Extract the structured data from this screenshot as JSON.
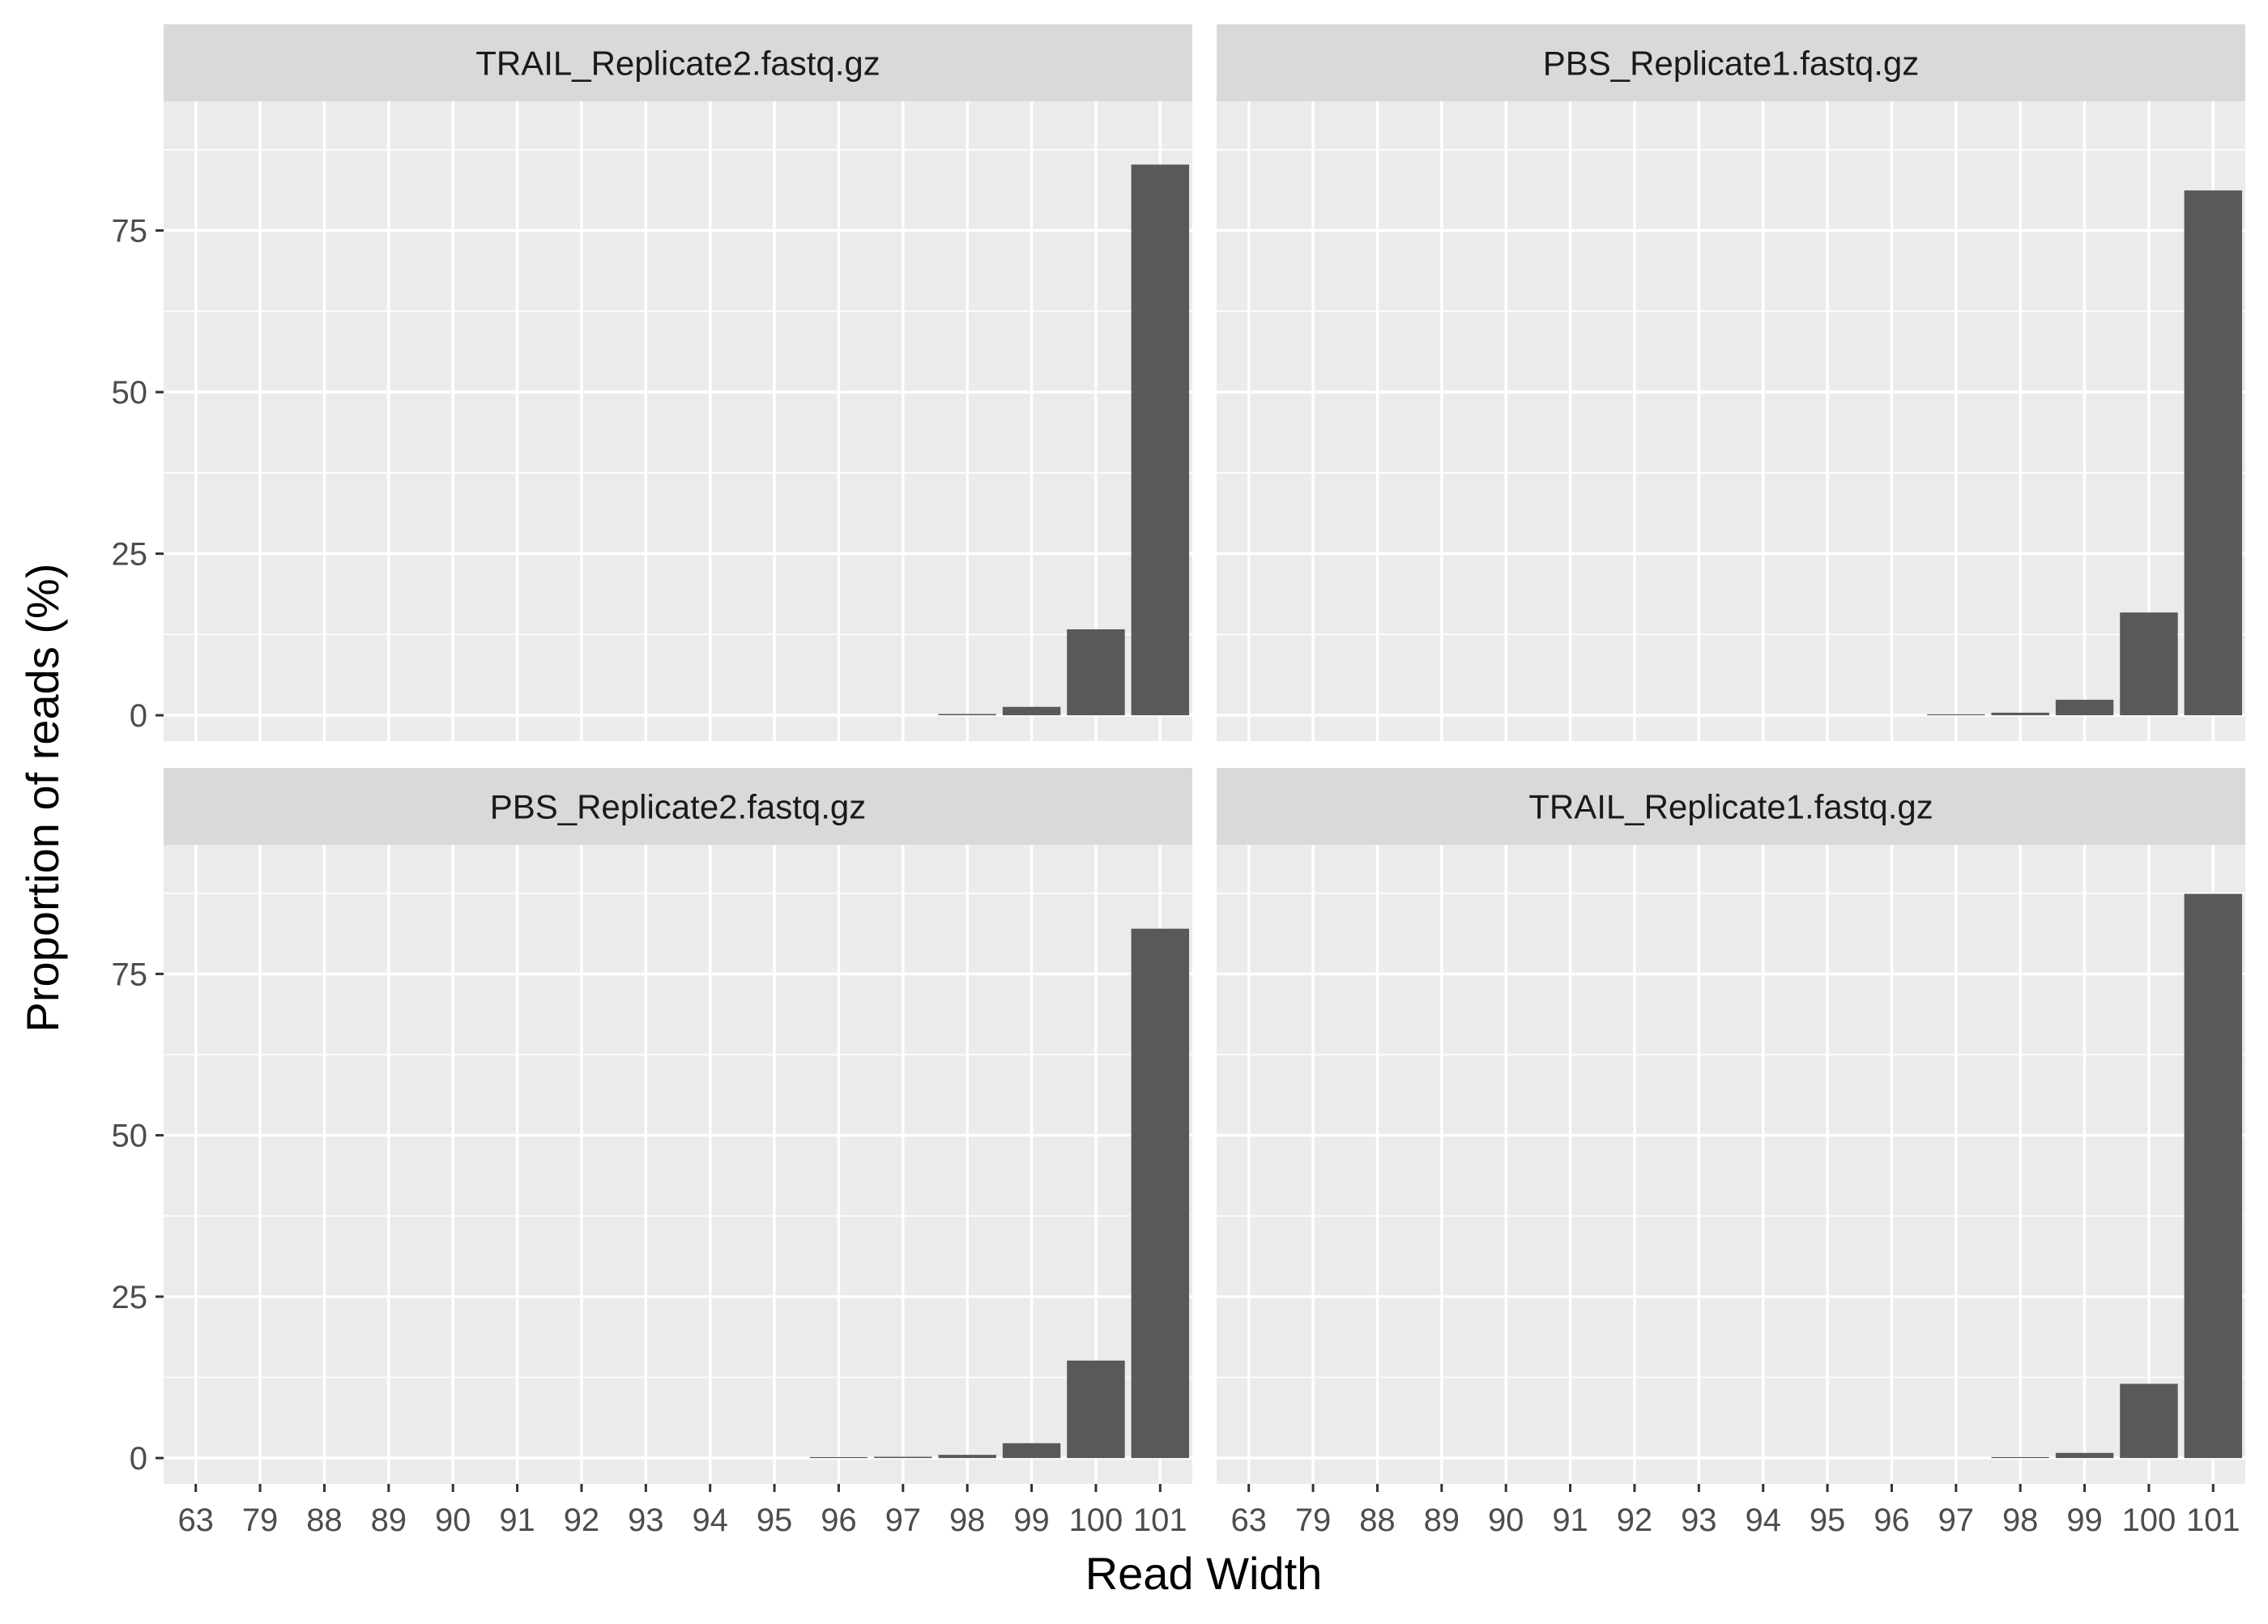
{
  "chart_data": {
    "type": "bar",
    "xlabel": "Read Width",
    "ylabel": "Proportion of reads (%)",
    "ylim": [
      -4,
      95
    ],
    "yticks": [
      0,
      25,
      50,
      75
    ],
    "grid": true,
    "bar_color": "#595959",
    "panel_background": "#ebebeb",
    "strip_background": "#d9d9d9",
    "categories": [
      "63",
      "79",
      "88",
      "89",
      "90",
      "91",
      "92",
      "93",
      "94",
      "95",
      "96",
      "97",
      "98",
      "99",
      "100",
      "101"
    ],
    "panels": [
      {
        "name": "TRAIL_Replicate2.fastq.gz",
        "values": [
          0,
          0,
          0,
          0,
          0,
          0,
          0,
          0,
          0,
          0,
          0,
          0,
          0.2,
          1.3,
          13.3,
          85.2
        ]
      },
      {
        "name": "PBS_Replicate1.fastq.gz",
        "values": [
          0,
          0,
          0,
          0,
          0,
          0,
          0,
          0,
          0,
          0,
          0,
          0.1,
          0.4,
          2.4,
          15.9,
          81.2
        ]
      },
      {
        "name": "PBS_Replicate2.fastq.gz",
        "values": [
          0,
          0,
          0,
          0,
          0,
          0,
          0,
          0,
          0,
          0,
          0.1,
          0.2,
          0.5,
          2.3,
          15.1,
          82.0
        ]
      },
      {
        "name": "TRAIL_Replicate1.fastq.gz",
        "values": [
          0,
          0,
          0,
          0,
          0,
          0,
          0,
          0,
          0,
          0,
          0,
          0,
          0.1,
          0.8,
          11.5,
          87.4
        ]
      }
    ]
  }
}
